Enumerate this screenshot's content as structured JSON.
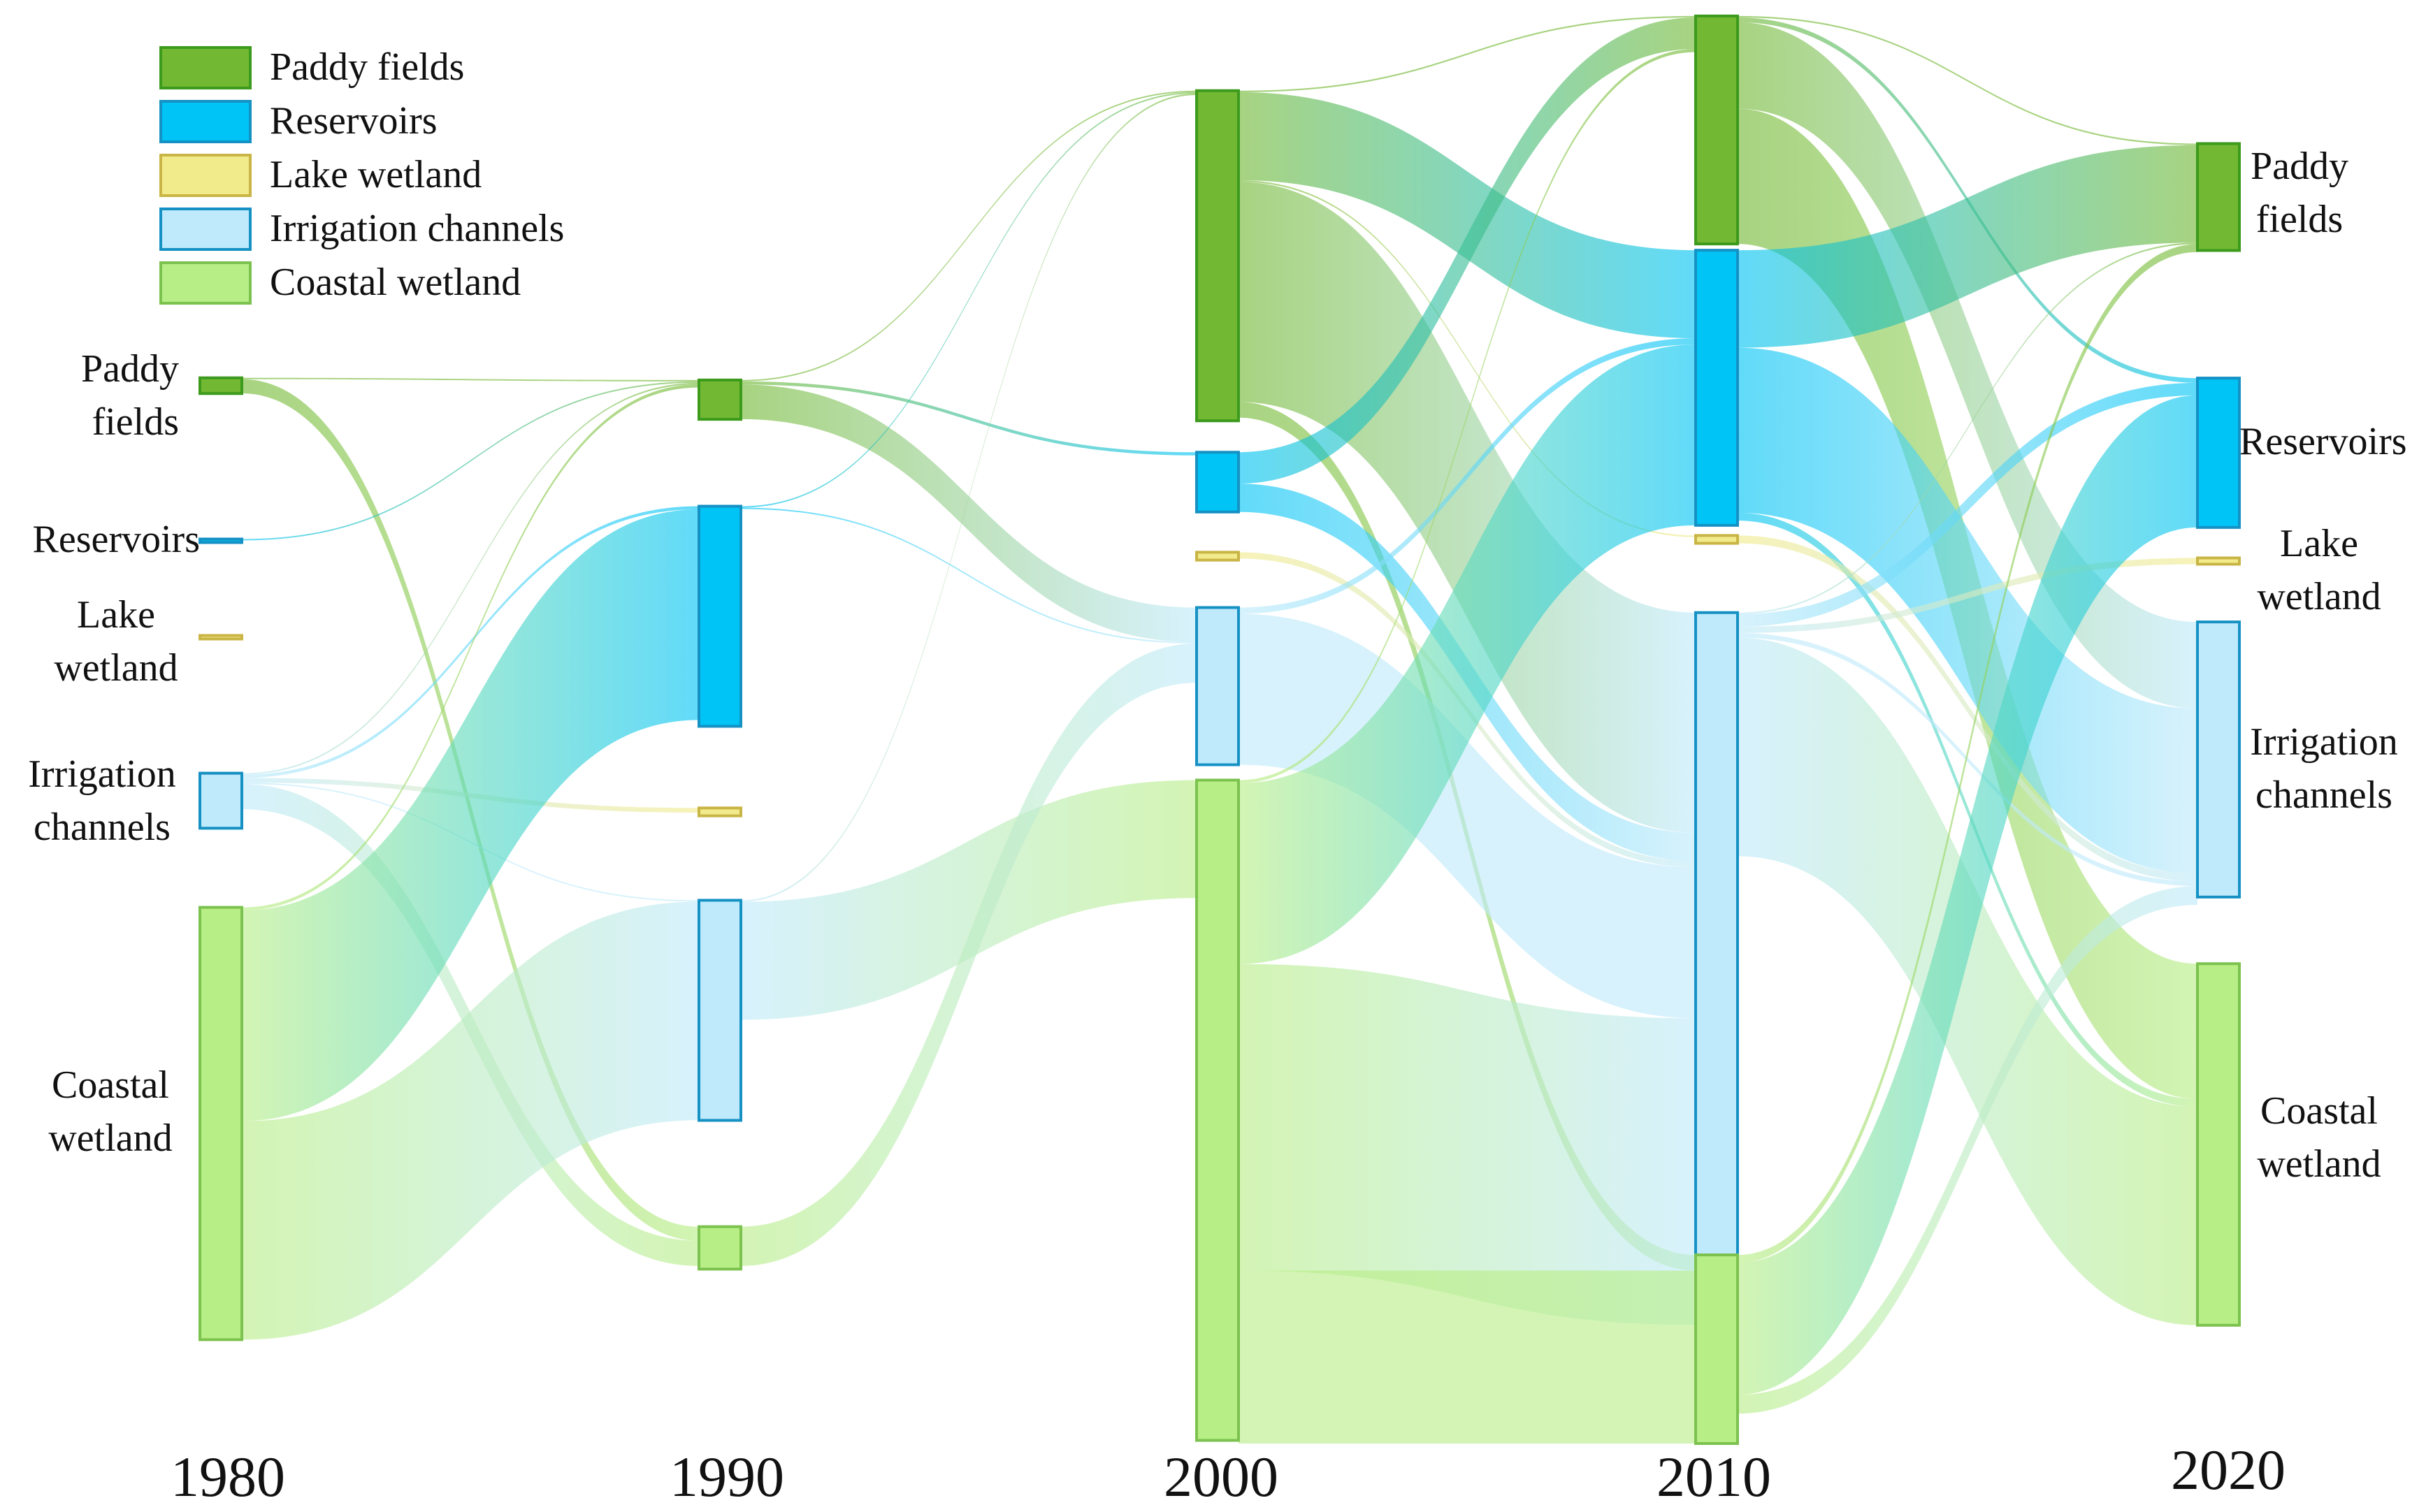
{
  "legend": [
    {
      "key": "paddy",
      "label": "Paddy fields"
    },
    {
      "key": "reservoirs",
      "label": "Reservoirs"
    },
    {
      "key": "lake",
      "label": "Lake wetland"
    },
    {
      "key": "irrigation",
      "label": "Irrigation channels"
    },
    {
      "key": "coastal",
      "label": "Coastal wetland"
    }
  ],
  "colors": {
    "paddy": {
      "fill": "#72b833",
      "stroke": "#3c9a1c"
    },
    "reservoirs": {
      "fill": "#00c4f5",
      "stroke": "#1591c4"
    },
    "lake": {
      "fill": "#f1eb8c",
      "stroke": "#c9b545"
    },
    "irrigation": {
      "fill": "#bfeafb",
      "stroke": "#1591c4"
    },
    "coastal": {
      "fill": "#b8ee86",
      "stroke": "#7cc24f"
    }
  },
  "chart_data": {
    "type": "sankey",
    "years": [
      "1980",
      "1990",
      "2000",
      "2010",
      "2020"
    ],
    "categories": [
      "Paddy fields",
      "Reservoirs",
      "Lake wetland",
      "Irrigation channels",
      "Coastal wetland"
    ],
    "node_values": {
      "1980": {
        "paddy": 1,
        "reservoirs": 0.2,
        "lake": 0.2,
        "irrigation": 3.5,
        "coastal": 27.5
      },
      "1990": {
        "paddy": 2.5,
        "reservoirs": 14,
        "lake": 0.5,
        "irrigation": 14,
        "coastal": 2.7
      },
      "2000": {
        "paddy": 21,
        "reservoirs": 3.8,
        "lake": 0.5,
        "irrigation": 10,
        "coastal": 42
      },
      "2010": {
        "paddy": 14.5,
        "reservoirs": 17.5,
        "lake": 0.5,
        "irrigation": 45,
        "coastal": 12
      },
      "2020": {
        "paddy": 6.8,
        "reservoirs": 9.5,
        "lake": 0.4,
        "irrigation": 17.5,
        "coastal": 23
      }
    },
    "node_labels": {
      "1980": {
        "paddy": [
          "Paddy",
          "fields"
        ],
        "reservoirs": [
          "Reservoirs"
        ],
        "lake": [
          "Lake",
          "wetland"
        ],
        "irrigation": [
          "Irrigation",
          "channels"
        ],
        "coastal": [
          "Coastal",
          "wetland"
        ]
      },
      "2020": {
        "paddy": [
          "Paddy",
          "fields"
        ],
        "reservoirs": [
          "Reservoirs"
        ],
        "lake": [
          "Lake",
          "wetland"
        ],
        "irrigation": [
          "Irrigation",
          "channels"
        ],
        "coastal": [
          "Coastal",
          "wetland"
        ]
      }
    },
    "flows": [
      {
        "from_year": "1980",
        "from": "paddy",
        "to": "paddy",
        "value": 0.05
      },
      {
        "from_year": "1980",
        "from": "paddy",
        "to": "coastal",
        "value": 0.9
      },
      {
        "from_year": "1980",
        "from": "reservoirs",
        "to": "paddy",
        "value": 0.05
      },
      {
        "from_year": "1980",
        "from": "irrigation",
        "to": "paddy",
        "value": 0.1
      },
      {
        "from_year": "1980",
        "from": "irrigation",
        "to": "reservoirs",
        "value": 0.2
      },
      {
        "from_year": "1980",
        "from": "irrigation",
        "to": "lake",
        "value": 0.3
      },
      {
        "from_year": "1980",
        "from": "irrigation",
        "to": "irrigation",
        "value": 0.05
      },
      {
        "from_year": "1980",
        "from": "irrigation",
        "to": "coastal",
        "value": 1.6
      },
      {
        "from_year": "1980",
        "from": "coastal",
        "to": "paddy",
        "value": 0.2
      },
      {
        "from_year": "1980",
        "from": "coastal",
        "to": "reservoirs",
        "value": 13.4
      },
      {
        "from_year": "1980",
        "from": "coastal",
        "to": "irrigation",
        "value": 13.9
      },
      {
        "from_year": "1990",
        "from": "paddy",
        "to": "paddy",
        "value": 0.05
      },
      {
        "from_year": "1990",
        "from": "paddy",
        "to": "reservoirs",
        "value": 0.2
      },
      {
        "from_year": "1990",
        "from": "paddy",
        "to": "irrigation",
        "value": 2.2
      },
      {
        "from_year": "1990",
        "from": "reservoirs",
        "to": "paddy",
        "value": 0.05
      },
      {
        "from_year": "1990",
        "from": "reservoirs",
        "to": "irrigation",
        "value": 0.05
      },
      {
        "from_year": "1990",
        "from": "irrigation",
        "to": "coastal",
        "value": 7.5
      },
      {
        "from_year": "1990",
        "from": "irrigation",
        "to": "paddy",
        "value": 0.1
      },
      {
        "from_year": "1990",
        "from": "coastal",
        "to": "irrigation",
        "value": 2.5
      },
      {
        "from_year": "2000",
        "from": "paddy",
        "to": "paddy",
        "value": 0.1
      },
      {
        "from_year": "2000",
        "from": "paddy",
        "to": "reservoirs",
        "value": 5.6
      },
      {
        "from_year": "2000",
        "from": "paddy",
        "to": "lake",
        "value": 0.1
      },
      {
        "from_year": "2000",
        "from": "paddy",
        "to": "irrigation",
        "value": 14
      },
      {
        "from_year": "2000",
        "from": "paddy",
        "to": "coastal",
        "value": 1
      },
      {
        "from_year": "2000",
        "from": "reservoirs",
        "to": "paddy",
        "value": 2
      },
      {
        "from_year": "2000",
        "from": "reservoirs",
        "to": "irrigation",
        "value": 1.8
      },
      {
        "from_year": "2000",
        "from": "lake",
        "to": "irrigation",
        "value": 0.4
      },
      {
        "from_year": "2000",
        "from": "irrigation",
        "to": "reservoirs",
        "value": 0.4
      },
      {
        "from_year": "2000",
        "from": "irrigation",
        "to": "irrigation",
        "value": 9.6
      },
      {
        "from_year": "2000",
        "from": "coastal",
        "to": "paddy",
        "value": 0.2
      },
      {
        "from_year": "2000",
        "from": "coastal",
        "to": "reservoirs",
        "value": 11.5
      },
      {
        "from_year": "2000",
        "from": "coastal",
        "to": "irrigation",
        "value": 19.5
      },
      {
        "from_year": "2000",
        "from": "coastal",
        "to": "coastal",
        "value": 11
      },
      {
        "from_year": "2010",
        "from": "paddy",
        "to": "paddy",
        "value": 0.1
      },
      {
        "from_year": "2010",
        "from": "paddy",
        "to": "reservoirs",
        "value": 0.3
      },
      {
        "from_year": "2010",
        "from": "paddy",
        "to": "irrigation",
        "value": 5.5
      },
      {
        "from_year": "2010",
        "from": "paddy",
        "to": "coastal",
        "value": 8.6
      },
      {
        "from_year": "2010",
        "from": "reservoirs",
        "to": "paddy",
        "value": 6.2
      },
      {
        "from_year": "2010",
        "from": "reservoirs",
        "to": "irrigation",
        "value": 10.5
      },
      {
        "from_year": "2010",
        "from": "reservoirs",
        "to": "coastal",
        "value": 0.5
      },
      {
        "from_year": "2010",
        "from": "lake",
        "to": "irrigation",
        "value": 0.5
      },
      {
        "from_year": "2010",
        "from": "irrigation",
        "to": "paddy",
        "value": 0.1
      },
      {
        "from_year": "2010",
        "from": "irrigation",
        "to": "reservoirs",
        "value": 0.8
      },
      {
        "from_year": "2010",
        "from": "irrigation",
        "to": "lake",
        "value": 0.4
      },
      {
        "from_year": "2010",
        "from": "irrigation",
        "to": "irrigation",
        "value": 0.3
      },
      {
        "from_year": "2010",
        "from": "irrigation",
        "to": "coastal",
        "value": 13.9
      },
      {
        "from_year": "2010",
        "from": "coastal",
        "to": "paddy",
        "value": 0.5
      },
      {
        "from_year": "2010",
        "from": "coastal",
        "to": "reservoirs",
        "value": 8.4
      },
      {
        "from_year": "2010",
        "from": "coastal",
        "to": "irrigation",
        "value": 1.2
      }
    ]
  }
}
